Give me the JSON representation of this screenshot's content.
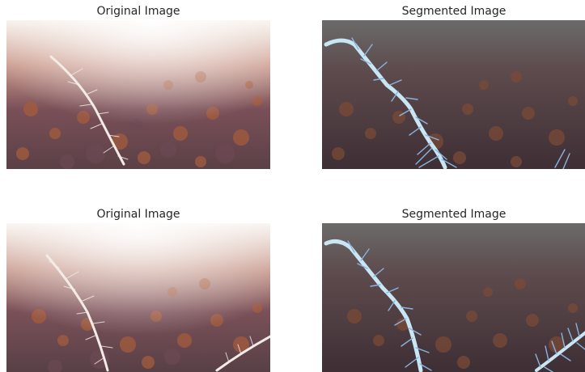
{
  "figure": {
    "panels": [
      {
        "title": "Original Image",
        "kind": "original",
        "variant": 1
      },
      {
        "title": "Segmented Image",
        "kind": "segmented",
        "variant": 1
      },
      {
        "title": "Original Image",
        "kind": "original",
        "variant": 2
      },
      {
        "title": "Segmented Image",
        "kind": "segmented",
        "variant": 2
      }
    ]
  },
  "colors": {
    "background": "#ffffff",
    "title_text": "#262626",
    "sediment_dark": "#4e3a40",
    "sediment_brown": "#9a5a3c",
    "washed_light": "#f4ede6",
    "segment_mask": "#c9e6f5",
    "segment_hair": "#8ab4e0"
  }
}
